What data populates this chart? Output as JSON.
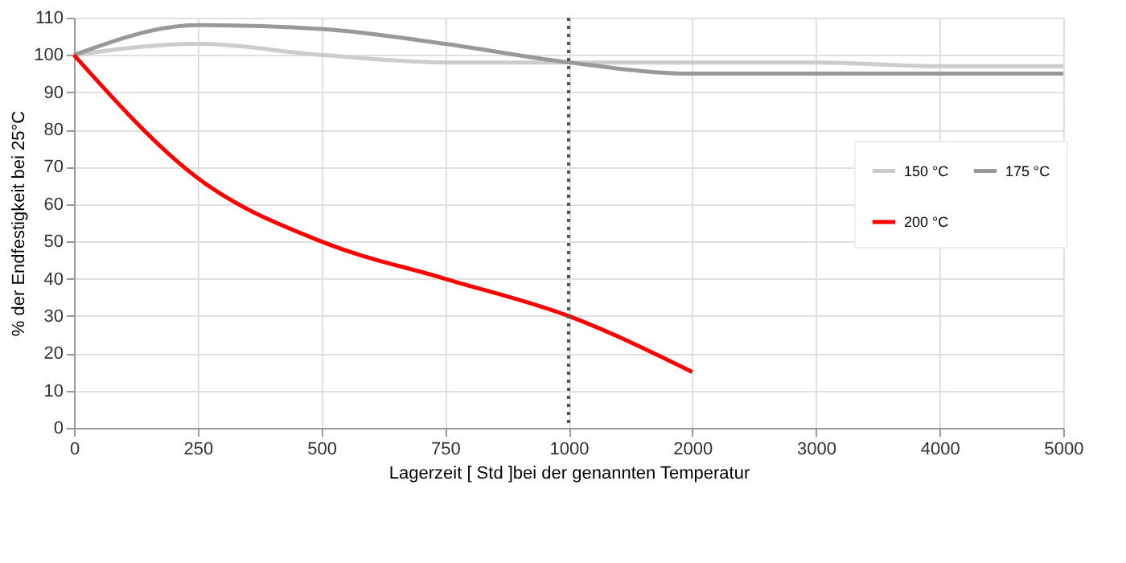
{
  "chart_data": {
    "type": "line",
    "xlabel": "Lagerzeit [ Std ]bei der genannten Temperatur",
    "ylabel": "% der Endfestigkeit bei 25°C",
    "categories": [
      "0",
      "250",
      "500",
      "750",
      "1000",
      "2000",
      "3000",
      "4000",
      "5000"
    ],
    "series": [
      {
        "name": "150 °C",
        "color": "#cccccc",
        "values": [
          100,
          103,
          100,
          98,
          98,
          98,
          98,
          97,
          97
        ]
      },
      {
        "name": "175 °C",
        "color": "#999999",
        "values": [
          100,
          108,
          107,
          103,
          98,
          95,
          95,
          95,
          95
        ]
      },
      {
        "name": "200 °C",
        "color": "#ff0000",
        "values": [
          100,
          67,
          50,
          40,
          30,
          15,
          null,
          null,
          null
        ]
      }
    ],
    "ylim": [
      0,
      110
    ],
    "yticks": [
      0,
      10,
      20,
      30,
      40,
      50,
      60,
      70,
      80,
      90,
      100,
      110
    ],
    "ref_lines": [
      {
        "axis": "x",
        "value": "1000",
        "color": "#555555",
        "line_style": "dotted"
      }
    ],
    "grid": true,
    "legend": "right",
    "marker": "none",
    "line_style": "solid"
  }
}
